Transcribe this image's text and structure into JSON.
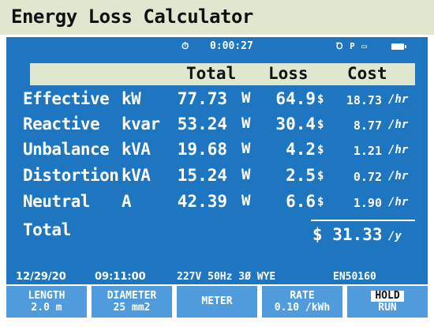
{
  "title": "Energy Loss Calculator",
  "status_top": {
    "timer_icon": "⏱",
    "elapsed": "0:00:27",
    "sys_icons": "Ꝺ P ▭"
  },
  "columns": {
    "total": "Total",
    "loss": "Loss",
    "cost": "Cost"
  },
  "rows": [
    {
      "name": "Effective",
      "unit": "kW",
      "total": "77.73",
      "loss_unit": "W",
      "loss": "64.9",
      "currency": "$",
      "cost": "18.73",
      "per": "/hr"
    },
    {
      "name": "Reactive",
      "unit": "kvar",
      "total": "53.24",
      "loss_unit": "W",
      "loss": "30.4",
      "currency": "$",
      "cost": "8.77",
      "per": "/hr"
    },
    {
      "name": "Unbalance",
      "unit": "kVA",
      "total": "19.68",
      "loss_unit": "W",
      "loss": "4.2",
      "currency": "$",
      "cost": "1.21",
      "per": "/hr"
    },
    {
      "name": "Distortion",
      "unit": "kVA",
      "total": "15.24",
      "loss_unit": "W",
      "loss": "2.5",
      "currency": "$",
      "cost": "0.72",
      "per": "/hr"
    },
    {
      "name": "Neutral",
      "unit": "A",
      "total": "42.39",
      "loss_unit": "W",
      "loss": "6.6",
      "currency": "$",
      "cost": "1.90",
      "per": "/hr"
    }
  ],
  "total_row": {
    "label": "Total",
    "sum": "$ 31.33",
    "per": "/y"
  },
  "status_bottom": {
    "date": "12/29/20",
    "time": "09:11:00",
    "system": "227V  50Hz 3Ø WYE",
    "standard": "EN50160"
  },
  "softkeys": {
    "length": {
      "label": "LENGTH",
      "value": "2.0 m"
    },
    "diameter": {
      "label": "DIAMETER",
      "value": "25 mm2"
    },
    "meter": {
      "label": "METER"
    },
    "rate": {
      "label": "RATE",
      "value": "0.10 /kWh"
    },
    "hold": {
      "label": "HOLD",
      "value": "RUN"
    }
  },
  "colors": {
    "screen_bg": "#1f76c0",
    "header_bg": "#dfe7cf",
    "softkey_bg": "#4f9bdc"
  }
}
